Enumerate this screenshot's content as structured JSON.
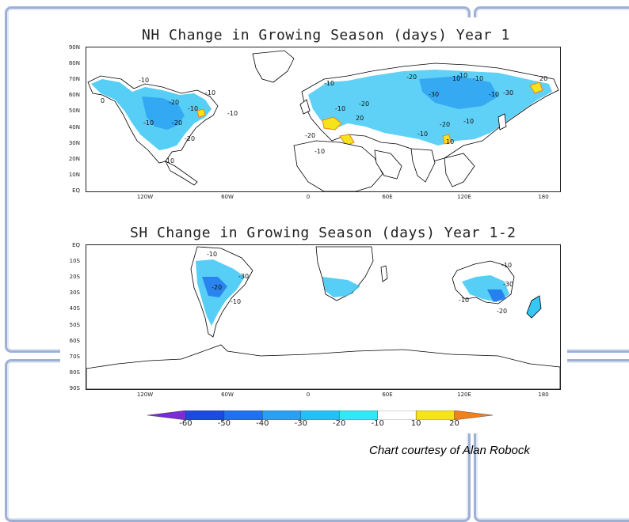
{
  "nh": {
    "title": "NH Change in Growing Season (days) Year 1",
    "lat_labels": [
      "90N",
      "80N",
      "70N",
      "60N",
      "50N",
      "40N",
      "30N",
      "20N",
      "10N",
      "EQ"
    ],
    "lon_labels": [
      "120W",
      "60W",
      "0",
      "60E",
      "120E",
      "180"
    ],
    "contours": [
      {
        "label": "-10",
        "region": "alaska"
      },
      {
        "label": "0",
        "region": "alaska-west"
      },
      {
        "label": "-20",
        "region": "canada"
      },
      {
        "label": "-10",
        "region": "canada-central"
      },
      {
        "label": "-10",
        "region": "great-lakes"
      },
      {
        "label": "-20",
        "region": "us-central"
      },
      {
        "label": "-10",
        "region": "us-west"
      },
      {
        "label": "-20",
        "region": "us-south"
      },
      {
        "label": "-10",
        "region": "mexico"
      },
      {
        "label": "-10",
        "region": "labrador"
      },
      {
        "label": "-10",
        "region": "scandinavia"
      },
      {
        "label": "-20",
        "region": "europe"
      },
      {
        "label": "-10",
        "region": "europe-south"
      },
      {
        "label": "20",
        "region": "mediterranean"
      },
      {
        "label": "-20",
        "region": "north-africa"
      },
      {
        "label": "-10",
        "region": "sahara"
      },
      {
        "label": "-30",
        "region": "siberia-west"
      },
      {
        "label": "-20",
        "region": "russia"
      },
      {
        "label": "-10",
        "region": "siberia"
      },
      {
        "label": "10",
        "region": "siberia-north"
      },
      {
        "label": "-10",
        "region": "siberia-east"
      },
      {
        "label": "-30",
        "region": "yakutia"
      },
      {
        "label": "-10",
        "region": "far-east"
      },
      {
        "label": "20",
        "region": "kamchatka"
      },
      {
        "label": "-20",
        "region": "mongolia"
      },
      {
        "label": "-10",
        "region": "china"
      },
      {
        "label": "-10",
        "region": "tibet"
      },
      {
        "label": "10",
        "region": "india-north"
      }
    ]
  },
  "sh": {
    "title": "SH Change in Growing Season (days) Year 1-2",
    "lat_labels": [
      "EQ",
      "10S",
      "20S",
      "30S",
      "40S",
      "50S",
      "60S",
      "70S",
      "80S",
      "90S"
    ],
    "lon_labels": [
      "120W",
      "60W",
      "0",
      "60E",
      "120E",
      "180"
    ],
    "contours": [
      {
        "label": "-10",
        "region": "peru"
      },
      {
        "label": "-30",
        "region": "brazil"
      },
      {
        "label": "-20",
        "region": "bolivia"
      },
      {
        "label": "-10",
        "region": "argentina"
      },
      {
        "label": "-10",
        "region": "australia-north"
      },
      {
        "label": "-10",
        "region": "australia-west"
      },
      {
        "label": "-30",
        "region": "australia-east"
      },
      {
        "label": "-20",
        "region": "australia-south"
      }
    ]
  },
  "colorbar": {
    "labels": [
      "-60",
      "-50",
      "-40",
      "-30",
      "-20",
      "-10",
      "10",
      "20"
    ],
    "colors": [
      "#7a2cd6",
      "#1c49e0",
      "#1f72ef",
      "#2aa0f3",
      "#22c0f5",
      "#34e7f4",
      "#ffffff",
      "#f5e31c",
      "#f0801c"
    ]
  },
  "credit": "Chart courtesy of Alan Robock"
}
